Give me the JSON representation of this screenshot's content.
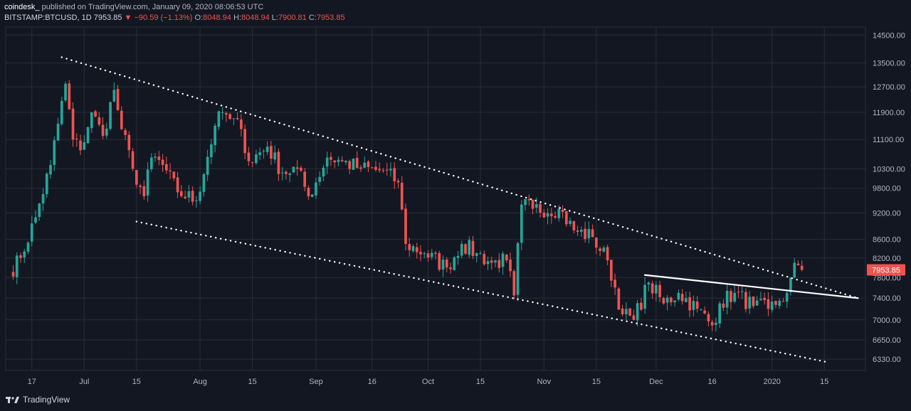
{
  "header": {
    "publisher": "coindesk_",
    "published_text": "published on TradingView.com, January 09, 2020 08:06:53 UTC",
    "symbol": "BITSTAMP:BTCUSD, 1D",
    "last": "7953.85",
    "change": "−90.59 (−1.13%)",
    "o_label": "O:",
    "o_value": "8048.94",
    "h_label": "H:",
    "h_value": "8048.94",
    "l_label": "L:",
    "l_value": "7900.81",
    "c_label": "C:",
    "c_value": "7953.85"
  },
  "footer": {
    "brand": "TradingView"
  },
  "colors": {
    "up": "#26a69a",
    "down": "#ef5350",
    "bg": "#131722",
    "grid": "#2a2e39",
    "text": "#b2b5be",
    "trendline": "#ffffff"
  },
  "chart_data": {
    "type": "candlestick",
    "symbol": "BITSTAMP:BTCUSD",
    "interval": "1D",
    "y_scale": "log",
    "y_ticks": [
      14500,
      13500,
      12700,
      11900,
      11100,
      10300,
      9800,
      9200,
      8600,
      8200,
      7800,
      7400,
      7000,
      6650,
      6330
    ],
    "y_tick_labels": [
      "14500.00",
      "13500.00",
      "12700.00",
      "11900.00",
      "11100.00",
      "10300.00",
      "9800.00",
      "9200.00",
      "8600.00",
      "8200.00",
      "7800.00",
      "7400.00",
      "7000.00",
      "6650.00",
      "6330.00"
    ],
    "x_tick_labels": [
      "17",
      "Jul",
      "15",
      "Aug",
      "15",
      "Sep",
      "16",
      "Oct",
      "15",
      "Nov",
      "15",
      "Dec",
      "16",
      "2020",
      "15"
    ],
    "x_tick_dates": [
      "2019-06-17",
      "2019-07-01",
      "2019-07-15",
      "2019-08-01",
      "2019-08-15",
      "2019-09-01",
      "2019-09-16",
      "2019-10-01",
      "2019-10-15",
      "2019-11-01",
      "2019-11-15",
      "2019-12-01",
      "2019-12-16",
      "2020-01-01",
      "2020-01-15"
    ],
    "last_price_label": "7953.85",
    "anchors": [
      [
        "2019-06-11",
        7900
      ],
      [
        "2019-06-14",
        8200
      ],
      [
        "2019-06-18",
        9100
      ],
      [
        "2019-06-22",
        10400
      ],
      [
        "2019-06-26",
        12800
      ],
      [
        "2019-06-28",
        11100
      ],
      [
        "2019-06-30",
        10800
      ],
      [
        "2019-07-03",
        11900
      ],
      [
        "2019-07-06",
        11200
      ],
      [
        "2019-07-09",
        12600
      ],
      [
        "2019-07-11",
        11400
      ],
      [
        "2019-07-14",
        10300
      ],
      [
        "2019-07-17",
        9600
      ],
      [
        "2019-07-19",
        10600
      ],
      [
        "2019-07-22",
        10400
      ],
      [
        "2019-07-26",
        9700
      ],
      [
        "2019-07-31",
        9500
      ],
      [
        "2019-08-05",
        11500
      ],
      [
        "2019-08-07",
        11900
      ],
      [
        "2019-08-09",
        11700
      ],
      [
        "2019-08-12",
        11400
      ],
      [
        "2019-08-14",
        10500
      ],
      [
        "2019-08-19",
        10900
      ],
      [
        "2019-08-23",
        10200
      ],
      [
        "2019-08-27",
        10300
      ],
      [
        "2019-08-30",
        9600
      ],
      [
        "2019-09-04",
        10600
      ],
      [
        "2019-09-08",
        10500
      ],
      [
        "2019-09-13",
        10300
      ],
      [
        "2019-09-19",
        10250
      ],
      [
        "2019-09-23",
        9950
      ],
      [
        "2019-09-25",
        8500
      ],
      [
        "2019-09-30",
        8300
      ],
      [
        "2019-10-06",
        8000
      ],
      [
        "2019-10-10",
        8500
      ],
      [
        "2019-10-14",
        8300
      ],
      [
        "2019-10-18",
        8100
      ],
      [
        "2019-10-22",
        8150
      ],
      [
        "2019-10-24",
        7450
      ],
      [
        "2019-10-26",
        9400
      ],
      [
        "2019-10-29",
        9300
      ],
      [
        "2019-11-05",
        9300
      ],
      [
        "2019-11-09",
        8800
      ],
      [
        "2019-11-14",
        8650
      ],
      [
        "2019-11-18",
        8150
      ],
      [
        "2019-11-22",
        7100
      ],
      [
        "2019-11-25",
        7000
      ],
      [
        "2019-11-29",
        7700
      ],
      [
        "2019-12-03",
        7300
      ],
      [
        "2019-12-07",
        7500
      ],
      [
        "2019-12-12",
        7200
      ],
      [
        "2019-12-16",
        6900
      ],
      [
        "2019-12-18",
        7300
      ],
      [
        "2019-12-22",
        7500
      ],
      [
        "2019-12-27",
        7250
      ],
      [
        "2019-12-31",
        7200
      ],
      [
        "2020-01-03",
        7350
      ],
      [
        "2020-01-05",
        7500
      ],
      [
        "2020-01-06",
        7800
      ],
      [
        "2020-01-07",
        8100
      ],
      [
        "2020-01-08",
        8050
      ],
      [
        "2020-01-09",
        7953.85
      ]
    ],
    "trendlines": [
      {
        "style": "dotted",
        "points": [
          [
            "2019-06-25",
            13700
          ],
          [
            "2020-01-24",
            7400
          ]
        ]
      },
      {
        "style": "dotted",
        "points": [
          [
            "2019-07-15",
            9000
          ],
          [
            "2020-01-16",
            6280
          ]
        ]
      },
      {
        "style": "solid",
        "points": [
          [
            "2019-11-28",
            7850
          ],
          [
            "2020-01-24",
            7400
          ]
        ]
      }
    ]
  }
}
